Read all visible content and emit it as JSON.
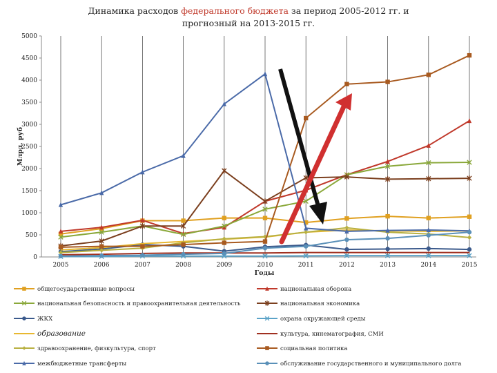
{
  "title": {
    "prefix": "Динамика расходов ",
    "highlight": "федерального бюджета",
    "suffix": " за период 2005-2012 гг. и",
    "line2": "прогнозный на 2013-2015 гг."
  },
  "chart_data": {
    "type": "line",
    "title": "Динамика расходов федерального бюджета за период 2005-2012 гг. и прогнозный на 2013-2015 гг.",
    "xlabel": "Годы",
    "ylabel": "Млрд. руб",
    "x": [
      "2005",
      "2006",
      "2007",
      "2008",
      "2009",
      "2010",
      "2011",
      "2012",
      "2013",
      "2014",
      "2015"
    ],
    "ylim": [
      0,
      5000
    ],
    "yticks": [
      0,
      500,
      1000,
      1500,
      2000,
      2500,
      3000,
      3500,
      4000,
      4500,
      5000
    ],
    "grid": "vertical",
    "legend_position": "bottom",
    "series": [
      {
        "name": "общегосударственные вопросы",
        "color": "#e0a020",
        "marker": "square",
        "values": [
          520,
          640,
          820,
          820,
          880,
          880,
          780,
          870,
          920,
          880,
          910
        ]
      },
      {
        "name": "национальная оборона",
        "color": "#c0392b",
        "marker": "triangle",
        "values": [
          580,
          670,
          830,
          530,
          670,
          1260,
          1510,
          1860,
          2160,
          2520,
          3080
        ]
      },
      {
        "name": "национальная безопасность и правоохранительная деятельность",
        "color": "#8aa83a",
        "marker": "x",
        "values": [
          450,
          560,
          700,
          510,
          700,
          1080,
          1260,
          1860,
          2050,
          2130,
          2140
        ]
      },
      {
        "name": "национальная экономика",
        "color": "#7b3f1e",
        "marker": "star",
        "values": [
          250,
          360,
          700,
          700,
          1950,
          1260,
          1790,
          1810,
          1760,
          1770,
          1780
        ]
      },
      {
        "name": "ЖКХ",
        "color": "#3b5a8c",
        "marker": "circle",
        "values": [
          120,
          180,
          280,
          240,
          130,
          230,
          270,
          170,
          180,
          190,
          170
        ]
      },
      {
        "name": "охрана окружающей среды",
        "color": "#5ba3c8",
        "marker": "x",
        "values": [
          10,
          10,
          20,
          20,
          20,
          20,
          25,
          30,
          30,
          30,
          30
        ]
      },
      {
        "name": "образование",
        "color": "#e8b830",
        "marker": "line",
        "values": [
          160,
          210,
          300,
          350,
          400,
          450,
          560,
          610,
          590,
          580,
          590
        ]
      },
      {
        "name": "культура, кинематография, СМИ",
        "color": "#a03020",
        "marker": "line",
        "values": [
          50,
          60,
          80,
          90,
          90,
          90,
          100,
          100,
          100,
          100,
          100
        ]
      },
      {
        "name": "здравоохранение, физкультура, спорт",
        "color": "#b8b040",
        "marker": "diamond",
        "values": [
          100,
          150,
          200,
          320,
          410,
          460,
          560,
          660,
          560,
          520,
          440
        ]
      },
      {
        "name": "социальная политика",
        "color": "#a85a20",
        "marker": "square",
        "values": [
          220,
          240,
          240,
          280,
          320,
          350,
          3140,
          3910,
          3960,
          4120,
          4560
        ]
      },
      {
        "name": "межбюджетные трансферты",
        "color": "#4a6aa8",
        "marker": "triangle",
        "values": [
          1180,
          1450,
          1920,
          2290,
          3460,
          4140,
          650,
          580,
          600,
          610,
          590
        ]
      },
      {
        "name": "обслуживание государственного и муниципального долга",
        "color": "#5a90b8",
        "marker": "circle",
        "values": [
          20,
          30,
          40,
          60,
          80,
          200,
          240,
          390,
          420,
          490,
          560
        ]
      }
    ]
  }
}
